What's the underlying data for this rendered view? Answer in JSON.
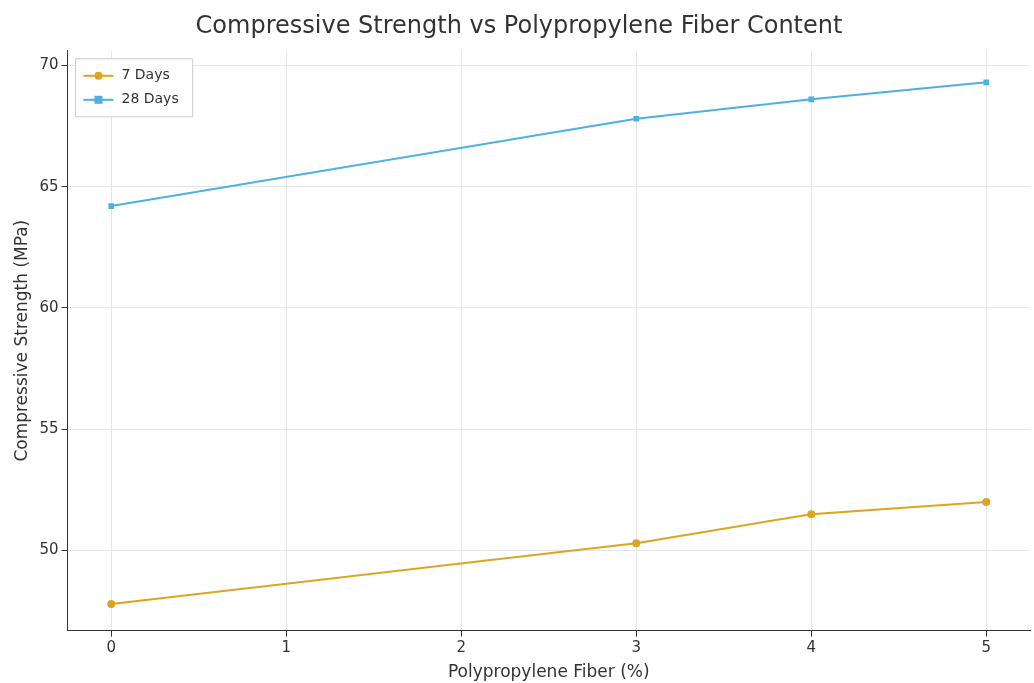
{
  "chart_data": {
    "type": "line",
    "title": "Compressive Strength vs Polypropylene Fiber Content",
    "xlabel": "Polypropylene Fiber (%)",
    "ylabel": "Compressive Strength (MPa)",
    "x": [
      0,
      3,
      4,
      5
    ],
    "series": [
      {
        "name": "7 Days",
        "color": "#daa520",
        "marker": "circle",
        "values": [
          47.8,
          50.3,
          51.5,
          52.0
        ]
      },
      {
        "name": "28 Days",
        "color": "#4eb0e0",
        "marker": "square",
        "values": [
          64.2,
          67.8,
          68.6,
          69.3
        ]
      }
    ],
    "xlim": [
      -0.25,
      5.25
    ],
    "xticks": [
      0,
      1,
      2,
      3,
      4,
      5
    ],
    "ylim": [
      46.7,
      70.6
    ],
    "yticks": [
      50,
      55,
      60,
      65,
      70
    ],
    "grid": true,
    "legend": "top left",
    "line_style": "solid"
  }
}
